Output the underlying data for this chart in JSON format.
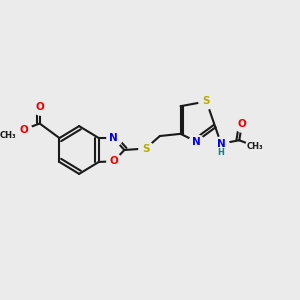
{
  "background_color": "#ebebeb",
  "bond_color": "#1a1a1a",
  "figsize": [
    3.0,
    3.0
  ],
  "dpi": 100,
  "colors": {
    "N": "#0000ee",
    "O": "#ee0000",
    "S": "#bbaa00",
    "C": "#1a1a1a",
    "H": "#008888"
  },
  "fs": 7.0,
  "lw": 1.5,
  "dbo": 0.014
}
